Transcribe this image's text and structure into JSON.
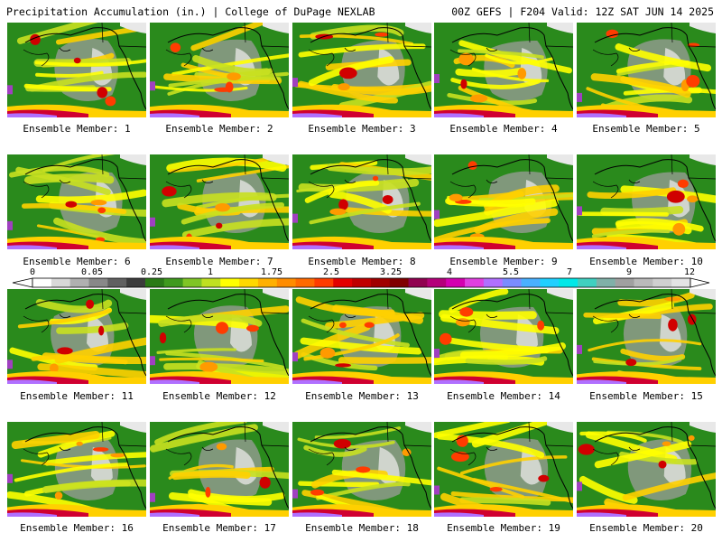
{
  "header": {
    "left_title": "Precipitation Accumulation (in.) | College of DuPage NEXLAB",
    "right_title": "00Z GEFS | F204 Valid: 12Z SAT JUN 14 2025"
  },
  "colorbar": {
    "labels": [
      "0",
      "0.05",
      "0.25",
      "1",
      "1.75",
      "2.5",
      "3.25",
      "4",
      "5.5",
      "7",
      "9",
      "12"
    ],
    "colors": [
      "#ffffff",
      "#d8d8d8",
      "#b0b0b0",
      "#888888",
      "#606060",
      "#3c3c3c",
      "#2a7a16",
      "#3f9a1d",
      "#7fc525",
      "#bfe020",
      "#ffff00",
      "#ffd800",
      "#ffb000",
      "#ff8c00",
      "#ff6a00",
      "#ff3c00",
      "#e40000",
      "#c00000",
      "#a00000",
      "#800000",
      "#900050",
      "#b4007a",
      "#d400b0",
      "#e040e0",
      "#b070ff",
      "#7a8cff",
      "#4ab0ff",
      "#20d0ff",
      "#00e8e8",
      "#40d0c0",
      "#80b0a8",
      "#a0a0a0",
      "#bababa",
      "#d0d0d0",
      "#e4e4e4"
    ]
  },
  "members": [
    {
      "label": "Ensemble Member: 1"
    },
    {
      "label": "Ensemble Member: 2"
    },
    {
      "label": "Ensemble Member: 3"
    },
    {
      "label": "Ensemble Member: 4"
    },
    {
      "label": "Ensemble Member: 5"
    },
    {
      "label": "Ensemble Member: 6"
    },
    {
      "label": "Ensemble Member: 7"
    },
    {
      "label": "Ensemble Member: 8"
    },
    {
      "label": "Ensemble Member: 9"
    },
    {
      "label": "Ensemble Member: 10"
    },
    {
      "label": "Ensemble Member: 11"
    },
    {
      "label": "Ensemble Member: 12"
    },
    {
      "label": "Ensemble Member: 13"
    },
    {
      "label": "Ensemble Member: 14"
    },
    {
      "label": "Ensemble Member: 15"
    },
    {
      "label": "Ensemble Member: 16"
    },
    {
      "label": "Ensemble Member: 17"
    },
    {
      "label": "Ensemble Member: 18"
    },
    {
      "label": "Ensemble Member: 19"
    },
    {
      "label": "Ensemble Member: 20"
    }
  ]
}
